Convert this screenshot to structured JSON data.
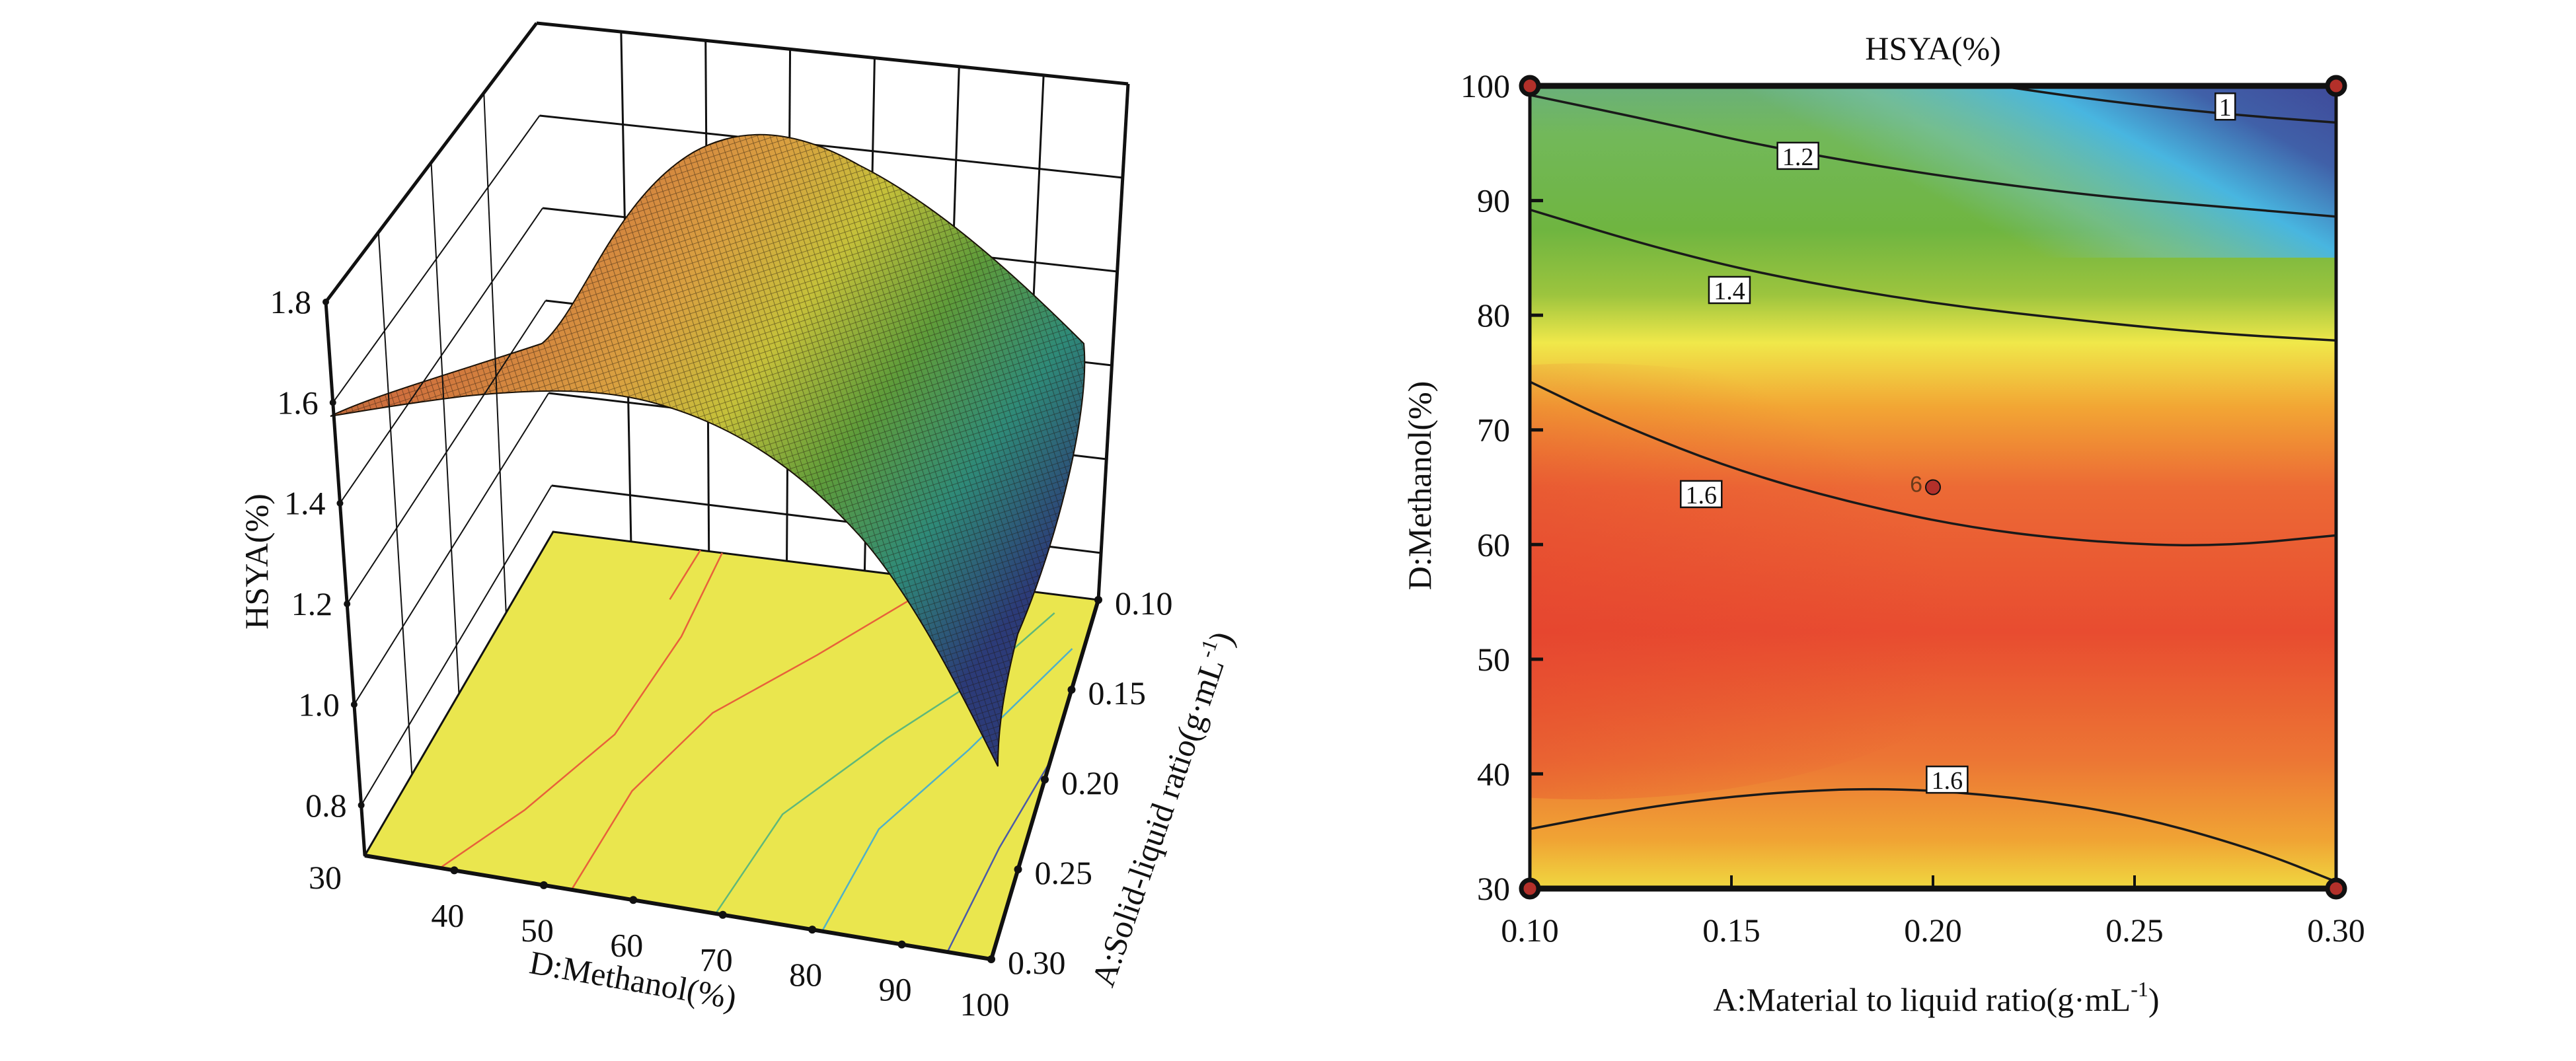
{
  "chart_data": [
    {
      "type": "surface3d",
      "zlabel": "HSYA(%)",
      "xlabel": "D:Methanol(%)",
      "ylabel": "A:Solid-liquid ratio(g·mL⁻¹)",
      "ylabel_main": "A:Solid-liquid ratio(g·mL",
      "ylabel_sup": "-1",
      "ylabel_close": ")",
      "x_ticks": [
        "30",
        "40",
        "50",
        "60",
        "70",
        "80",
        "90",
        "100"
      ],
      "x_range": [
        30,
        100
      ],
      "y_ticks": [
        "0.10",
        "0.15",
        "0.20",
        "0.25",
        "0.30"
      ],
      "y_range": [
        0.1,
        0.3
      ],
      "z_ticks": [
        "0.8",
        "1.0",
        "1.2",
        "1.4",
        "1.6",
        "1.8"
      ],
      "z_range": [
        0.7,
        1.8
      ],
      "surface_peak": {
        "D": 55,
        "A": 0.16,
        "HSYA": 1.66
      },
      "floor_contour_colors": [
        "#e8613a",
        "#e8613a",
        "#e8613a",
        "#5fb87a",
        "#4fb0c8",
        "#4a5aa8"
      ]
    },
    {
      "type": "contour",
      "title": "HSYA(%)",
      "xlabel_main": "A:Material to liquid ratio(g·mL",
      "xlabel_sup": "-1",
      "xlabel_close": ")",
      "ylabel": "D:Methanol(%)",
      "x_ticks": [
        "0.10",
        "0.15",
        "0.20",
        "0.25",
        "0.30"
      ],
      "x_range": [
        0.1,
        0.3
      ],
      "y_ticks": [
        "30",
        "40",
        "50",
        "60",
        "70",
        "80",
        "90",
        "100"
      ],
      "y_range": [
        30,
        100
      ],
      "contours": [
        {
          "level": "1",
          "points": [
            [
              0.2165,
              100
            ],
            [
              0.24,
              98.8
            ],
            [
              0.27,
              97.6
            ],
            [
              0.3,
              96.8
            ]
          ],
          "label_at": [
            0.2725,
            98.2
          ]
        },
        {
          "level": "1.2",
          "points": [
            [
              0.1,
              99.2
            ],
            [
              0.13,
              97
            ],
            [
              0.16,
              94.6
            ],
            [
              0.2,
              92.2
            ],
            [
              0.24,
              90.4
            ],
            [
              0.27,
              89.5
            ],
            [
              0.3,
              88.6
            ]
          ],
          "label_at": [
            0.1665,
            93.9
          ]
        },
        {
          "level": "1.4",
          "points": [
            [
              0.1,
              89.2
            ],
            [
              0.13,
              86
            ],
            [
              0.16,
              83.4
            ],
            [
              0.2,
              81
            ],
            [
              0.24,
              79.4
            ],
            [
              0.27,
              78.4
            ],
            [
              0.3,
              77.8
            ]
          ],
          "label_at": [
            0.1495,
            82.2
          ]
        },
        {
          "level": "1.6",
          "points": [
            [
              0.1,
              74.2
            ],
            [
              0.12,
              70.8
            ],
            [
              0.15,
              66.6
            ],
            [
              0.18,
              63.6
            ],
            [
              0.21,
              61.4
            ],
            [
              0.24,
              60.2
            ],
            [
              0.27,
              59.8
            ],
            [
              0.3,
              60.8
            ]
          ],
          "label_at": [
            0.1425,
            64.4
          ]
        },
        {
          "level": "1.6",
          "points": [
            [
              0.1,
              35.2
            ],
            [
              0.13,
              37.2
            ],
            [
              0.16,
              38.4
            ],
            [
              0.19,
              38.8
            ],
            [
              0.22,
              38
            ],
            [
              0.25,
              36.4
            ],
            [
              0.28,
              33.4
            ],
            [
              0.3,
              30.6
            ]
          ],
          "label_at": [
            0.2035,
            39.5
          ]
        }
      ],
      "design_points": [
        {
          "A": 0.1,
          "D": 100
        },
        {
          "A": 0.3,
          "D": 100
        },
        {
          "A": 0.1,
          "D": 30
        },
        {
          "A": 0.3,
          "D": 30
        },
        {
          "A": 0.2,
          "D": 65,
          "label": "6"
        }
      ],
      "color_scale": [
        "#3f4a9a",
        "#48b6e0",
        "#76c2b0",
        "#74b53c",
        "#6db33f",
        "#f0e84a",
        "#f0a030",
        "#ec6a35",
        "#e4402e"
      ]
    }
  ]
}
